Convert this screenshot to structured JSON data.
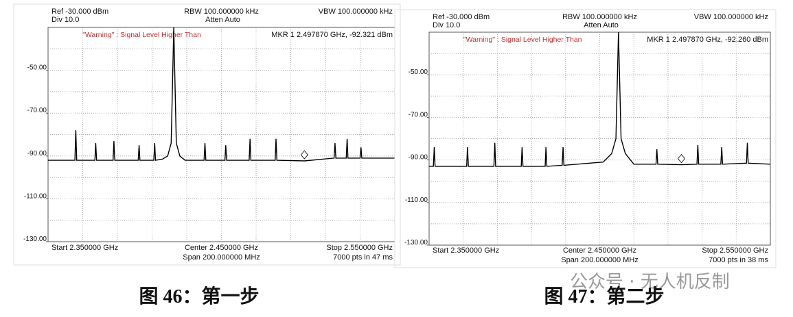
{
  "watermark": "公众号 · 无人机反制",
  "chart_data": [
    {
      "type": "line",
      "color": "#000000",
      "ref_level": "Ref -30.000 dBm",
      "div": "Div 10.0",
      "rbw": "RBW 100.000000 kHz",
      "atten": "Atten Auto",
      "vbw": "VBW 100.000000 kHz",
      "warning": "\"Warning\" : Signal Level Higher Than",
      "marker_readout": "MKR 1 2.497870 GHz, -92.321 dBm",
      "start": "Start 2.350000 GHz",
      "center": "Center 2.450000 GHz",
      "span": "Span 200.000000 MHz",
      "stop": "Stop 2.550000 GHz",
      "sweep": "7000 pts in 47 ms",
      "caption": "图 46：第一步",
      "xlim": [
        2.35,
        2.55
      ],
      "ylim": [
        -130,
        -30
      ],
      "yticks": [
        {
          "value": -50,
          "label": "-50.00"
        },
        {
          "value": -70,
          "label": "-70.00"
        },
        {
          "value": -90,
          "label": "-90.00"
        },
        {
          "value": -110,
          "label": "-110.00"
        },
        {
          "value": -130,
          "label": "-130.00"
        }
      ],
      "grid": true,
      "marker": {
        "x": 2.49787,
        "y": -92.321
      },
      "x": [
        2.35,
        2.3655,
        2.366,
        2.3665,
        2.377,
        2.3775,
        2.378,
        2.3875,
        2.388,
        2.3885,
        2.402,
        2.4025,
        2.403,
        2.411,
        2.4115,
        2.412,
        2.416,
        2.419,
        2.421,
        2.4225,
        2.424,
        2.426,
        2.429,
        2.44,
        2.4405,
        2.441,
        2.452,
        2.4525,
        2.453,
        2.466,
        2.4665,
        2.467,
        2.481,
        2.4815,
        2.482,
        2.4979,
        2.515,
        2.5155,
        2.516,
        2.522,
        2.5225,
        2.523,
        2.53,
        2.5305,
        2.531,
        2.55
      ],
      "values": [
        -92,
        -92,
        -78,
        -92,
        -92,
        -84,
        -92,
        -92,
        -83,
        -92,
        -92,
        -85,
        -92,
        -92,
        -84,
        -92,
        -91.5,
        -90,
        -84,
        -30,
        -84,
        -90,
        -92,
        -92,
        -84,
        -92,
        -92,
        -85,
        -92,
        -92,
        -82,
        -92,
        -92,
        -82,
        -92,
        -92.3,
        -91,
        -84,
        -91,
        -91,
        -82,
        -91,
        -91,
        -86,
        -91,
        -91
      ]
    },
    {
      "type": "line",
      "color": "#000000",
      "ref_level": "Ref -30.000 dBm",
      "div": "Div 10.0",
      "rbw": "RBW 100.000000 kHz",
      "atten": "Atten Auto",
      "vbw": "VBW 100.000000 kHz",
      "warning": "\"Warning\" : Signal Level Higher Than",
      "marker_readout": "MKR 1 2.497870 GHz, -92.260 dBm",
      "start": "Start 2.350000 GHz",
      "center": "Center 2.450000 GHz",
      "span": "Span 200.000000 MHz",
      "stop": "Stop 2.550000 GHz",
      "sweep": "7000 pts in 38 ms",
      "caption": "图 47：第二步",
      "xlim": [
        2.35,
        2.55
      ],
      "ylim": [
        -130,
        -30
      ],
      "yticks": [
        {
          "value": -50,
          "label": "-50.00"
        },
        {
          "value": -70,
          "label": "-70.00"
        },
        {
          "value": -90,
          "label": "-90.00"
        },
        {
          "value": -110,
          "label": "-110.00"
        },
        {
          "value": -130,
          "label": "-130.00"
        }
      ],
      "grid": true,
      "marker": {
        "x": 2.49787,
        "y": -92.26
      },
      "x": [
        2.35,
        2.3525,
        2.353,
        2.3535,
        2.372,
        2.3725,
        2.373,
        2.388,
        2.3885,
        2.389,
        2.404,
        2.4045,
        2.405,
        2.418,
        2.4185,
        2.419,
        2.428,
        2.4285,
        2.429,
        2.452,
        2.457,
        2.4595,
        2.461,
        2.4625,
        2.465,
        2.47,
        2.483,
        2.4835,
        2.484,
        2.4979,
        2.507,
        2.5075,
        2.508,
        2.521,
        2.5215,
        2.522,
        2.536,
        2.5365,
        2.537,
        2.55
      ],
      "values": [
        -93,
        -93,
        -84,
        -93,
        -93,
        -84,
        -93,
        -93,
        -82,
        -93,
        -93,
        -84,
        -93,
        -93,
        -84,
        -93,
        -92.5,
        -84,
        -92.5,
        -91,
        -87,
        -80,
        -30,
        -80,
        -87,
        -92,
        -92,
        -85,
        -92,
        -92.26,
        -92,
        -83,
        -92,
        -92,
        -84,
        -92,
        -91.5,
        -82,
        -91.5,
        -92
      ]
    }
  ]
}
